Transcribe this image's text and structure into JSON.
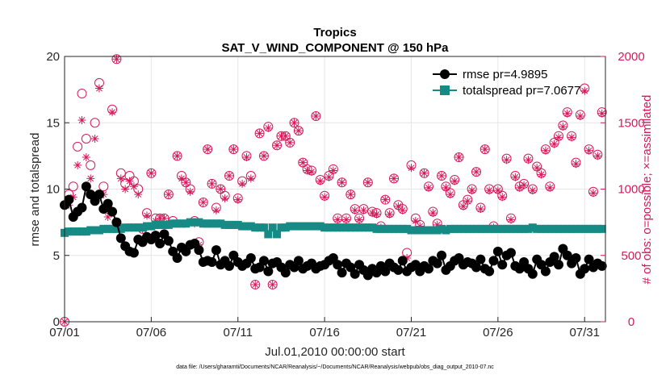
{
  "chart_data": {
    "type": "line",
    "title": "Tropics",
    "subtitle": "SAT_V_WIND_COMPONENT @ 150 hPa",
    "xlabel": "Jul.01,2010 00:00:00 start",
    "ylabel_left": "rmse and totalspread",
    "ylabel_right": "# of obs: o=possible; ×=assimilated",
    "footnote": "data file: /Users/gharamti/Documents/NCAR/Reanalysis/~/Documents/NCAR/Reanalysis/webpub/obs_diag_output_2010-07.nc",
    "xlim": [
      1,
      32.2
    ],
    "ylim_left": [
      0,
      20
    ],
    "ylim_right": [
      0,
      2000
    ],
    "x_ticks": [
      1,
      6,
      11,
      16,
      21,
      26,
      31
    ],
    "x_tick_labels": [
      "07/01",
      "07/06",
      "07/11",
      "07/16",
      "07/21",
      "07/26",
      "07/31"
    ],
    "y_left_ticks": [
      "0",
      "5",
      "10",
      "15",
      "20"
    ],
    "y_right_ticks": [
      "0",
      "500",
      "1000",
      "1500",
      "2000"
    ],
    "colors": {
      "rmse": "#000000",
      "spread": "#168a84",
      "obs": "#d6195a",
      "grid": "#e6e6e6",
      "axis": "#262626"
    },
    "series": [
      {
        "name": "rmse",
        "legend": "rmse pr=4.9895",
        "x": [
          1.0,
          1.25,
          1.5,
          1.75,
          2.0,
          2.25,
          2.5,
          2.75,
          3.0,
          3.25,
          3.5,
          3.75,
          4.0,
          4.25,
          4.5,
          4.75,
          5.0,
          5.25,
          5.5,
          5.75,
          6.0,
          6.25,
          6.5,
          6.75,
          7.0,
          7.25,
          7.5,
          7.75,
          8.0,
          8.25,
          8.5,
          8.75,
          9.0,
          9.25,
          9.5,
          9.75,
          10.0,
          10.25,
          10.5,
          10.75,
          11.0,
          11.25,
          11.5,
          11.75,
          12.0,
          12.25,
          12.5,
          12.75,
          13.0,
          13.25,
          13.5,
          13.75,
          14.0,
          14.25,
          14.5,
          14.75,
          15.0,
          15.25,
          15.5,
          15.75,
          16.0,
          16.25,
          16.5,
          16.75,
          17.0,
          17.25,
          17.5,
          17.75,
          18.0,
          18.25,
          18.5,
          18.75,
          19.0,
          19.25,
          19.5,
          19.75,
          20.0,
          20.25,
          20.5,
          20.75,
          21.0,
          21.25,
          21.5,
          21.75,
          22.0,
          22.25,
          22.5,
          22.75,
          23.0,
          23.25,
          23.5,
          23.75,
          24.0,
          24.25,
          24.5,
          24.75,
          25.0,
          25.25,
          25.5,
          25.75,
          26.0,
          26.25,
          26.5,
          26.75,
          27.0,
          27.25,
          27.5,
          27.75,
          28.0,
          28.25,
          28.5,
          28.75,
          29.0,
          29.25,
          29.5,
          29.75,
          30.0,
          30.25,
          30.5,
          30.75,
          31.0,
          31.25,
          31.5,
          31.75,
          32.0
        ],
        "values": [
          8.8,
          9.2,
          7.9,
          8.3,
          8.6,
          10.2,
          9.6,
          9.1,
          9.6,
          8.5,
          8.9,
          8.3,
          7.5,
          6.3,
          5.7,
          5.3,
          5.2,
          6.2,
          6.0,
          6.4,
          6.2,
          6.5,
          5.9,
          6.6,
          6.1,
          5.3,
          4.8,
          5.6,
          5.3,
          5.8,
          5.9,
          5.4,
          4.5,
          4.6,
          4.5,
          5.4,
          4.3,
          4.6,
          4.2,
          5.0,
          4.5,
          4.2,
          4.4,
          4.8,
          4.0,
          4.1,
          4.6,
          3.8,
          4.4,
          4.5,
          4.1,
          3.7,
          4.3,
          4.1,
          4.6,
          4.0,
          4.2,
          4.4,
          4.0,
          4.2,
          4.3,
          4.6,
          4.8,
          4.3,
          3.7,
          4.4,
          4.1,
          3.6,
          4.3,
          3.9,
          3.5,
          4.0,
          3.7,
          4.2,
          3.8,
          4.4,
          4.1,
          3.9,
          4.6,
          3.8,
          4.1,
          4.3,
          3.8,
          4.2,
          4.0,
          4.6,
          4.4,
          5.0,
          3.9,
          4.2,
          4.6,
          4.8,
          4.3,
          4.5,
          4.4,
          4.1,
          4.7,
          4.0,
          3.8,
          4.6,
          5.3,
          4.3,
          5.0,
          5.2,
          4.2,
          4.0,
          4.5,
          4.0,
          3.6,
          4.7,
          4.3,
          3.8,
          4.5,
          4.9,
          4.3,
          5.5,
          5.0,
          4.4,
          4.8,
          3.6,
          4.0,
          4.7,
          4.1,
          4.4,
          4.2
        ]
      },
      {
        "name": "totalspread",
        "legend": "totalspread pr=7.0677",
        "x": [
          1.0,
          1.25,
          1.5,
          1.75,
          2.0,
          2.25,
          2.5,
          2.75,
          3.0,
          3.25,
          3.5,
          3.75,
          4.0,
          4.25,
          4.5,
          4.75,
          5.0,
          5.25,
          5.5,
          5.75,
          6.0,
          6.25,
          6.5,
          6.75,
          7.0,
          7.25,
          7.5,
          7.75,
          8.0,
          8.25,
          8.5,
          8.75,
          9.0,
          9.25,
          9.5,
          9.75,
          10.0,
          10.25,
          10.5,
          10.75,
          11.0,
          11.25,
          11.5,
          11.75,
          12.0,
          12.25,
          12.5,
          12.75,
          13.0,
          13.25,
          13.5,
          13.75,
          14.0,
          14.25,
          14.5,
          14.75,
          15.0,
          15.25,
          15.5,
          15.75,
          16.0,
          16.25,
          16.5,
          16.75,
          17.0,
          17.25,
          17.5,
          17.75,
          18.0,
          18.25,
          18.5,
          18.75,
          19.0,
          19.25,
          19.5,
          19.75,
          20.0,
          20.25,
          20.5,
          20.75,
          21.0,
          21.25,
          21.5,
          21.75,
          22.0,
          22.25,
          22.5,
          22.75,
          23.0,
          23.25,
          23.5,
          23.75,
          24.0,
          24.25,
          24.5,
          24.75,
          25.0,
          25.25,
          25.5,
          25.75,
          26.0,
          26.25,
          26.5,
          26.75,
          27.0,
          27.25,
          27.5,
          27.75,
          28.0,
          28.25,
          28.5,
          28.75,
          29.0,
          29.25,
          29.5,
          29.75,
          30.0,
          30.25,
          30.5,
          30.75,
          31.0,
          31.25,
          31.5,
          31.75,
          32.0
        ],
        "values": [
          6.7,
          6.8,
          6.8,
          6.8,
          6.8,
          6.8,
          6.9,
          6.9,
          6.9,
          7.0,
          7.0,
          7.0,
          7.0,
          7.0,
          7.1,
          7.1,
          7.1,
          7.1,
          7.1,
          7.2,
          7.2,
          7.3,
          7.3,
          7.3,
          7.3,
          7.4,
          7.4,
          7.4,
          7.4,
          7.5,
          7.5,
          7.5,
          7.4,
          7.4,
          7.4,
          7.4,
          7.4,
          7.3,
          7.3,
          7.3,
          7.3,
          7.2,
          7.2,
          7.2,
          7.1,
          7.1,
          7.1,
          6.6,
          7.1,
          6.6,
          7.1,
          7.1,
          7.2,
          7.2,
          7.2,
          7.2,
          7.2,
          7.2,
          7.2,
          7.2,
          7.1,
          7.1,
          7.1,
          7.1,
          7.1,
          7.1,
          7.1,
          7.1,
          7.1,
          7.1,
          7.1,
          7.1,
          7.0,
          7.0,
          7.0,
          7.0,
          7.0,
          7.0,
          7.0,
          7.0,
          6.9,
          6.9,
          6.9,
          6.9,
          6.9,
          6.9,
          6.9,
          7.0,
          6.9,
          7.0,
          7.0,
          7.0,
          7.0,
          7.0,
          7.0,
          7.0,
          7.0,
          7.0,
          7.0,
          7.0,
          7.0,
          7.0,
          7.0,
          7.0,
          7.0,
          7.0,
          7.0,
          7.0,
          7.1,
          7.0,
          7.0,
          7.0,
          7.0,
          7.0,
          7.0,
          7.0,
          7.0,
          7.0,
          7.0,
          7.0,
          7.0,
          7.0,
          7.0,
          7.0,
          7.0
        ]
      },
      {
        "name": "obs_possible",
        "axis": "right",
        "x": [
          1.0,
          1.25,
          1.5,
          1.75,
          2.0,
          2.25,
          2.5,
          2.75,
          3.0,
          3.25,
          3.5,
          3.75,
          4.0,
          4.25,
          4.5,
          4.75,
          5.0,
          5.25,
          5.5,
          5.75,
          6.0,
          6.25,
          6.5,
          6.75,
          7.0,
          7.25,
          7.5,
          7.75,
          8.0,
          8.25,
          8.5,
          8.75,
          9.0,
          9.25,
          9.5,
          9.75,
          10.0,
          10.25,
          10.5,
          10.75,
          11.0,
          11.25,
          11.5,
          11.75,
          12.0,
          12.25,
          12.5,
          12.75,
          13.0,
          13.25,
          13.5,
          13.75,
          14.0,
          14.25,
          14.5,
          14.75,
          15.0,
          15.25,
          15.5,
          15.75,
          16.0,
          16.25,
          16.5,
          16.75,
          17.0,
          17.25,
          17.5,
          17.75,
          18.0,
          18.25,
          18.5,
          18.75,
          19.0,
          19.25,
          19.5,
          19.75,
          20.0,
          20.25,
          20.5,
          20.75,
          21.0,
          21.25,
          21.5,
          21.75,
          22.0,
          22.25,
          22.5,
          22.75,
          23.0,
          23.25,
          23.5,
          23.75,
          24.0,
          24.25,
          24.5,
          24.75,
          25.0,
          25.25,
          25.5,
          25.75,
          26.0,
          26.25,
          26.5,
          26.75,
          27.0,
          27.25,
          27.5,
          27.75,
          28.0,
          28.25,
          28.5,
          28.75,
          29.0,
          29.25,
          29.5,
          29.75,
          30.0,
          30.25,
          30.5,
          30.75,
          31.0,
          31.25,
          31.5,
          31.75,
          32.0
        ],
        "values": [
          0,
          960,
          1020,
          1320,
          1720,
          1380,
          1180,
          1500,
          1800,
          1020,
          850,
          1600,
          1980,
          1120,
          1040,
          1100,
          1060,
          1000,
          700,
          820,
          1120,
          780,
          780,
          780,
          960,
          760,
          1250,
          1100,
          1050,
          1000,
          760,
          600,
          900,
          1300,
          1040,
          860,
          1000,
          950,
          1100,
          1300,
          930,
          1060,
          1250,
          1100,
          280,
          1420,
          1250,
          1470,
          280,
          1330,
          1400,
          1400,
          1350,
          1500,
          1440,
          1200,
          1150,
          1140,
          1550,
          1070,
          950,
          1100,
          1150,
          780,
          1050,
          780,
          960,
          850,
          780,
          850,
          1050,
          830,
          820,
          720,
          920,
          820,
          1080,
          880,
          850,
          520,
          1180,
          780,
          730,
          1120,
          1020,
          830,
          740,
          1100,
          1020,
          970,
          1070,
          1240,
          880,
          920,
          1000,
          1130,
          860,
          1300,
          1000,
          720,
          1000,
          950,
          1230,
          780,
          1100,
          1020,
          1040,
          1230,
          1000,
          1170,
          1120,
          1300,
          1020,
          1350,
          1400,
          1480,
          1580,
          1400,
          1200,
          1560,
          1760,
          1300,
          980,
          1260,
          1580
        ]
      },
      {
        "name": "obs_assimilated",
        "axis": "right",
        "x": [
          1.0,
          1.25,
          1.5,
          1.75,
          2.0,
          2.25,
          2.5,
          2.75,
          3.0,
          3.25,
          3.5,
          3.75,
          4.0,
          4.25,
          4.5,
          4.75,
          5.0,
          5.25,
          5.5,
          5.75,
          6.0,
          6.25,
          6.5,
          6.75,
          7.0,
          7.25,
          7.5,
          7.75,
          8.0,
          8.25,
          8.5,
          8.75,
          9.0,
          9.25,
          9.5,
          9.75,
          10.0,
          10.25,
          10.5,
          10.75,
          11.0,
          11.25,
          11.5,
          11.75,
          12.0,
          12.25,
          12.5,
          12.75,
          13.0,
          13.25,
          13.5,
          13.75,
          14.0,
          14.25,
          14.5,
          14.75,
          15.0,
          15.25,
          15.5,
          15.75,
          16.0,
          16.25,
          16.5,
          16.75,
          17.0,
          17.25,
          17.5,
          17.75,
          18.0,
          18.25,
          18.5,
          18.75,
          19.0,
          19.25,
          19.5,
          19.75,
          20.0,
          20.25,
          20.5,
          20.75,
          21.0,
          21.25,
          21.5,
          21.75,
          22.0,
          22.25,
          22.5,
          22.75,
          23.0,
          23.25,
          23.5,
          23.75,
          24.0,
          24.25,
          24.5,
          24.75,
          25.0,
          25.25,
          25.5,
          25.75,
          26.0,
          26.25,
          26.5,
          26.75,
          27.0,
          27.25,
          27.5,
          27.75,
          28.0,
          28.25,
          28.5,
          28.75,
          29.0,
          29.25,
          29.5,
          29.75,
          30.0,
          30.25,
          30.5,
          30.75,
          31.0,
          31.25,
          31.5,
          31.75,
          32.0
        ],
        "values": [
          0,
          880,
          940,
          1180,
          1520,
          1240,
          1080,
          1380,
          1760,
          960,
          790,
          1580,
          1980,
          1080,
          1000,
          1060,
          1020,
          960,
          700,
          800,
          1120,
          760,
          780,
          780,
          960,
          740,
          1250,
          1080,
          1050,
          980,
          740,
          580,
          900,
          1300,
          1040,
          840,
          1000,
          930,
          1100,
          1300,
          920,
          1040,
          1240,
          1080,
          280,
          1420,
          1250,
          1460,
          280,
          1330,
          1400,
          1400,
          1350,
          1500,
          1440,
          1200,
          1140,
          1130,
          1550,
          1060,
          940,
          1090,
          1140,
          770,
          1050,
          770,
          960,
          840,
          770,
          840,
          1050,
          820,
          810,
          710,
          920,
          810,
          1080,
          870,
          840,
          480,
          1160,
          760,
          720,
          1120,
          1010,
          820,
          730,
          1100,
          1010,
          960,
          1060,
          1240,
          870,
          910,
          990,
          1130,
          850,
          1300,
          990,
          710,
          990,
          940,
          1220,
          770,
          1090,
          1010,
          1030,
          1220,
          990,
          1160,
          1110,
          1290,
          1010,
          1340,
          1390,
          1470,
          1570,
          1390,
          1190,
          1550,
          1740,
          1290,
          970,
          1250,
          1570
        ]
      }
    ]
  }
}
